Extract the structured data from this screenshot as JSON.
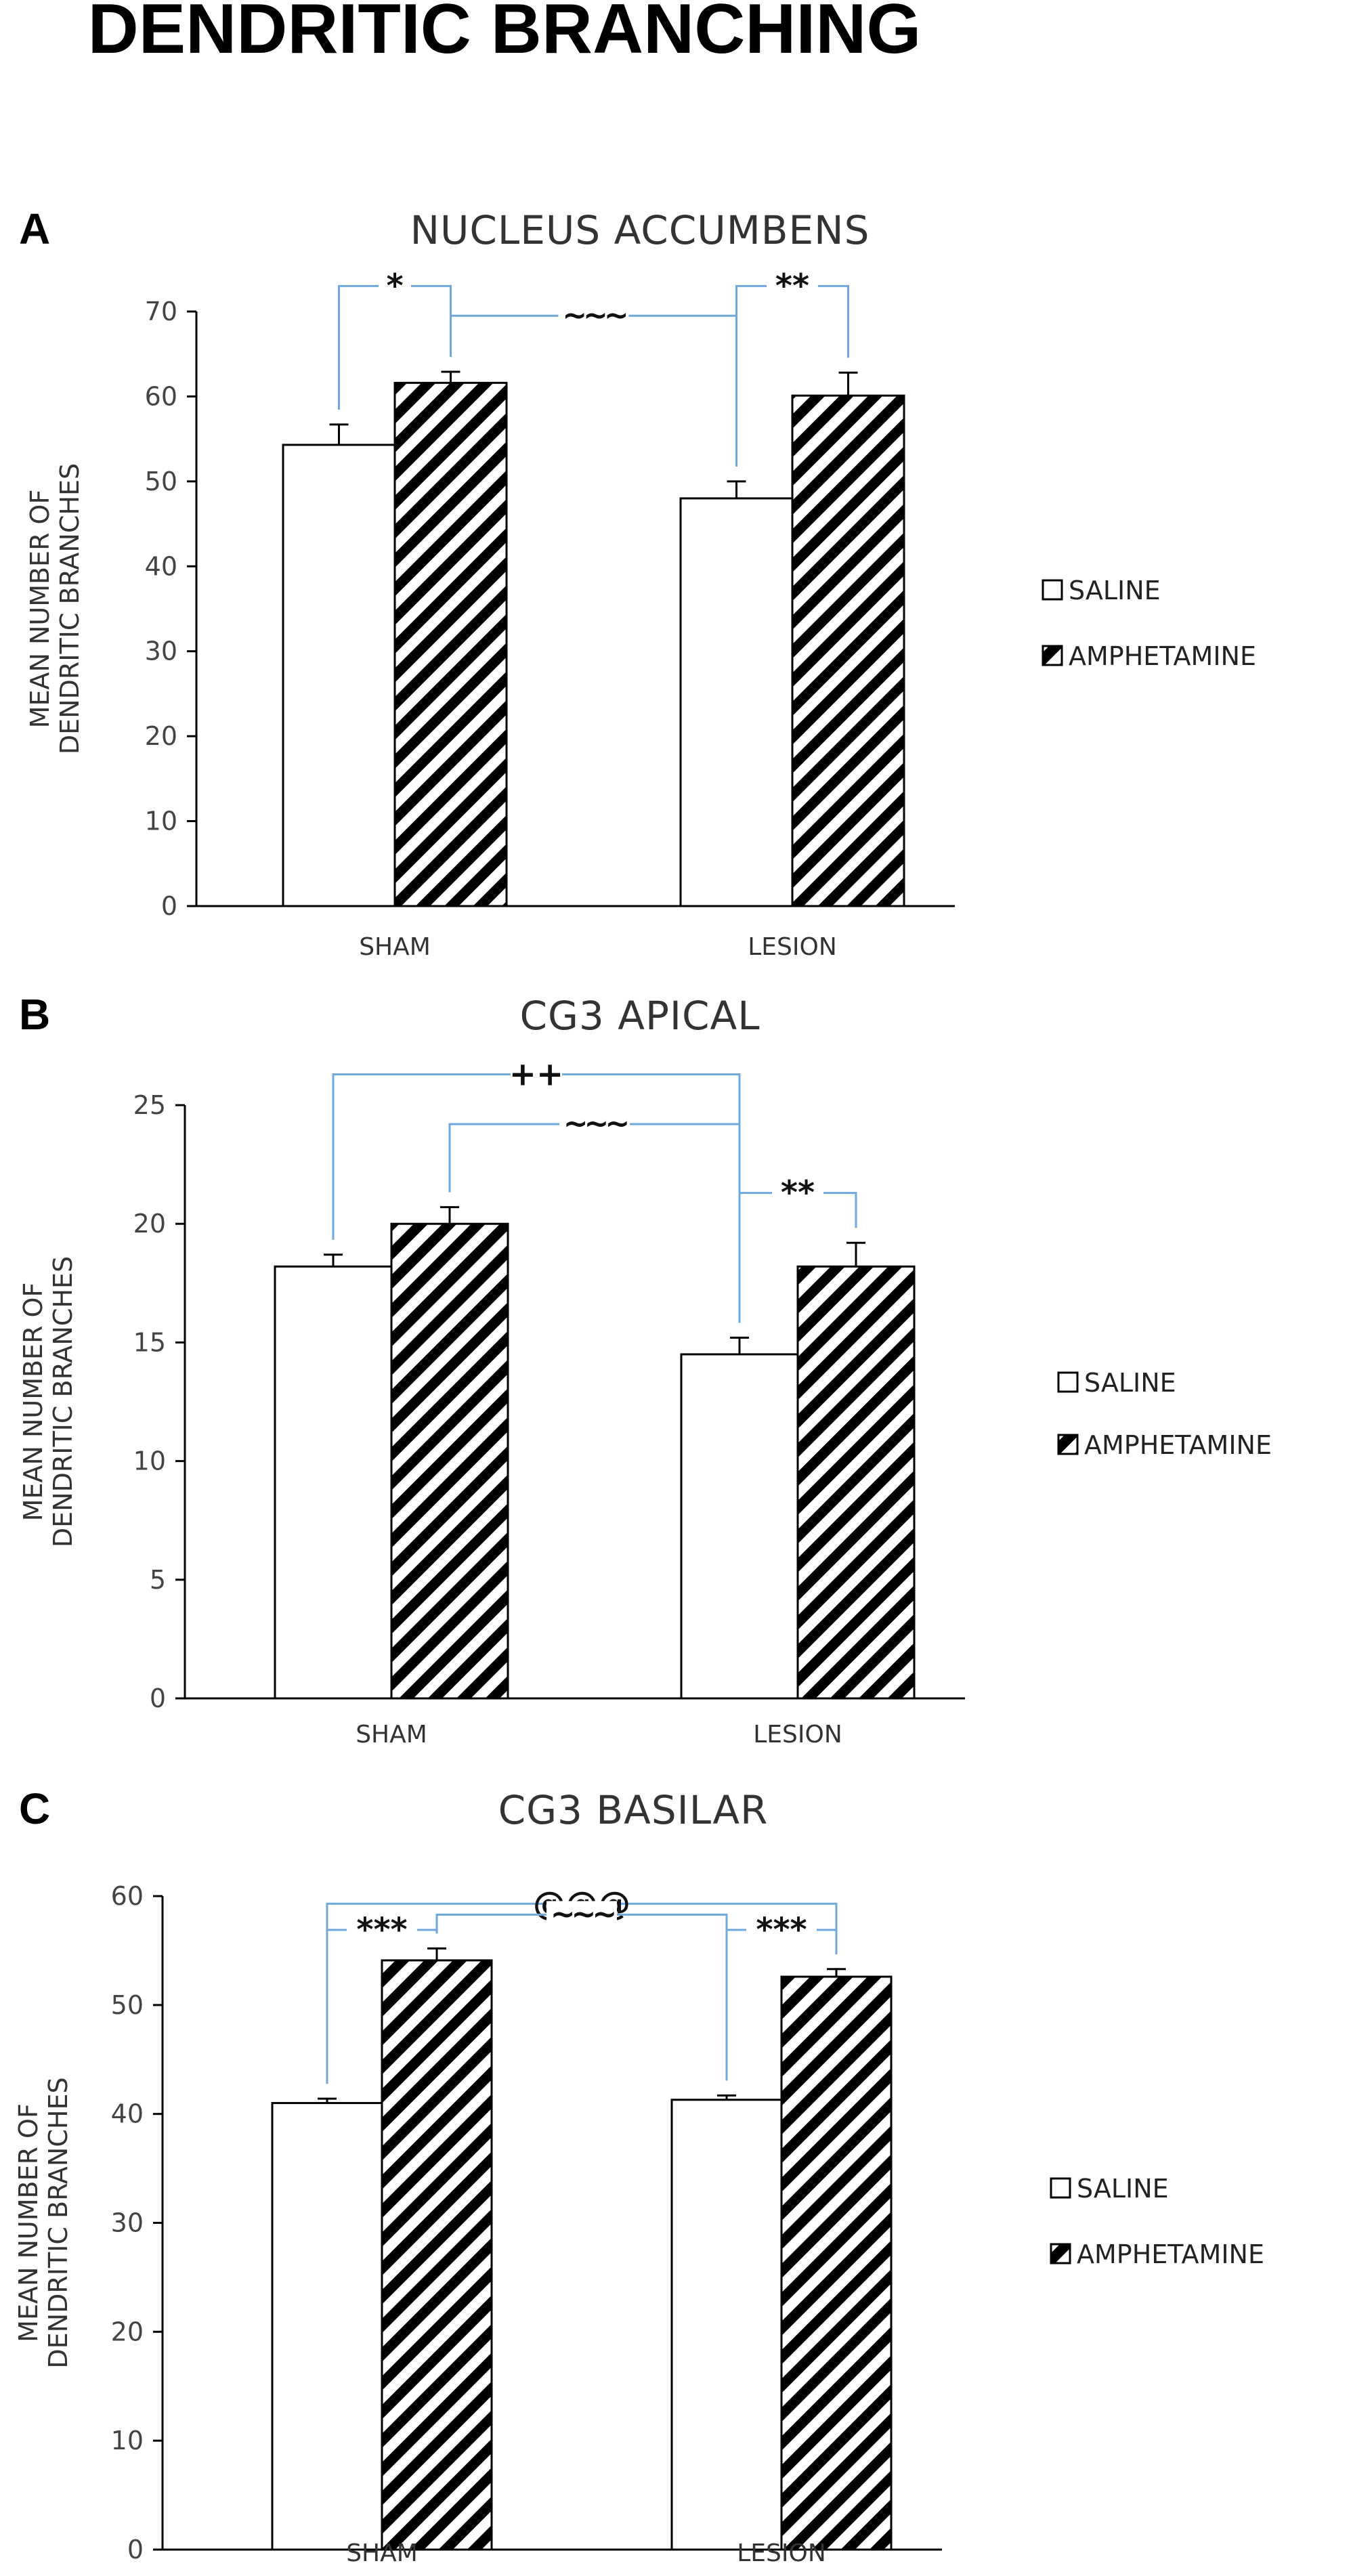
{
  "figure_title": "DENDRITIC BRANCHING",
  "chart_data": [
    {
      "panel": "A",
      "type": "bar",
      "title": "NUCLEUS ACCUMBENS",
      "xlabel": "",
      "ylabel_line1": "MEAN NUMBER OF",
      "ylabel_line2": "DENDRITIC BRANCHES",
      "categories": [
        "SHAM",
        "LESION"
      ],
      "ylim": [
        0,
        70
      ],
      "yticks": [
        0,
        10,
        20,
        30,
        40,
        50,
        60,
        70
      ],
      "series": [
        {
          "name": "SALINE",
          "values": [
            54.3,
            48.0
          ],
          "errors": [
            2.4,
            2.0
          ]
        },
        {
          "name": "AMPHETAMINE",
          "values": [
            61.6,
            60.1
          ],
          "errors": [
            1.3,
            2.7
          ]
        }
      ],
      "legend": [
        "SALINE",
        "AMPHETAMINE"
      ],
      "legend_position": "right",
      "annotations": [
        {
          "label": "*",
          "from": [
            0,
            "SALINE"
          ],
          "to": [
            0,
            "AMPHETAMINE"
          ],
          "y": 73
        },
        {
          "label": "**",
          "from": [
            1,
            "SALINE"
          ],
          "to": [
            1,
            "AMPHETAMINE"
          ],
          "y": 73
        },
        {
          "label": "~~~",
          "from": [
            0,
            "AMPHETAMINE"
          ],
          "to": [
            1,
            "SALINE"
          ],
          "y": 69.5,
          "join": "bracket_mid"
        }
      ]
    },
    {
      "panel": "B",
      "type": "bar",
      "title": "CG3 APICAL",
      "xlabel": "",
      "ylabel_line1": "MEAN NUMBER OF",
      "ylabel_line2": "DENDRITIC BRANCHES",
      "categories": [
        "SHAM",
        "LESION"
      ],
      "ylim": [
        0,
        25
      ],
      "yticks": [
        0,
        5,
        10,
        15,
        20,
        25
      ],
      "series": [
        {
          "name": "SALINE",
          "values": [
            18.2,
            14.5
          ],
          "errors": [
            0.5,
            0.7
          ]
        },
        {
          "name": "AMPHETAMINE",
          "values": [
            20.0,
            18.2
          ],
          "errors": [
            0.7,
            1.0
          ]
        }
      ],
      "legend": [
        "SALINE",
        "AMPHETAMINE"
      ],
      "legend_position": "right",
      "annotations": [
        {
          "label": "++",
          "from": [
            0,
            "SALINE"
          ],
          "to": [
            1,
            "SALINE"
          ],
          "y": 26.3
        },
        {
          "label": "~~~",
          "from": [
            0,
            "AMPHETAMINE"
          ],
          "to": [
            1,
            "SALINE"
          ],
          "y": 24.2
        },
        {
          "label": "**",
          "from": [
            1,
            "SALINE"
          ],
          "to": [
            1,
            "AMPHETAMINE"
          ],
          "y": 21.3
        }
      ]
    },
    {
      "panel": "C",
      "type": "bar",
      "title": "CG3 BASILAR",
      "xlabel": "",
      "ylabel_line1": "MEAN NUMBER OF",
      "ylabel_line2": "DENDRITIC BRANCHES",
      "categories": [
        "SHAM",
        "LESION"
      ],
      "ylim": [
        0,
        60
      ],
      "yticks": [
        0,
        10,
        20,
        30,
        40,
        50,
        60
      ],
      "series": [
        {
          "name": "SALINE",
          "values": [
            41.0,
            41.3
          ],
          "errors": [
            0.4,
            0.4
          ]
        },
        {
          "name": "AMPHETAMINE",
          "values": [
            54.1,
            52.6
          ],
          "errors": [
            1.1,
            0.7
          ]
        }
      ],
      "legend": [
        "SALINE",
        "AMPHETAMINE"
      ],
      "legend_position": "right",
      "annotations": [
        {
          "label": "@@@",
          "from": [
            0,
            "SALINE"
          ],
          "to": [
            1,
            "AMPHETAMINE"
          ],
          "y": 59.3
        },
        {
          "label": "***",
          "from": [
            0,
            "SALINE"
          ],
          "to": [
            0,
            "AMPHETAMINE"
          ],
          "y": 56.9
        },
        {
          "label": "~~~",
          "from": [
            0,
            "AMPHETAMINE"
          ],
          "to": [
            1,
            "SALINE"
          ],
          "y": 58.3
        },
        {
          "label": "***",
          "from": [
            1,
            "SALINE"
          ],
          "to": [
            1,
            "AMPHETAMINE"
          ],
          "y": 56.9
        }
      ]
    }
  ],
  "colors": {
    "bracket": "#6fa8dc",
    "axis": "#000000",
    "bar_fill": "#ffffff",
    "hatch": "#000000"
  }
}
